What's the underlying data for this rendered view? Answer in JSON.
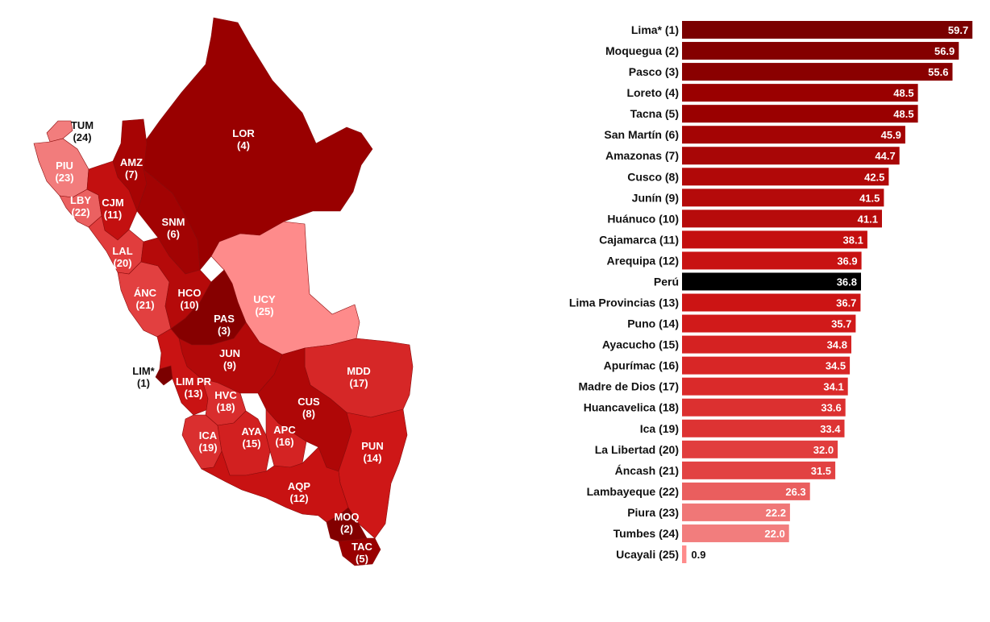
{
  "map": {
    "regions": [
      {
        "code": "LOR",
        "rank": "(4)",
        "value": 48.5,
        "label_color": "#ffffff"
      },
      {
        "code": "AMZ",
        "rank": "(7)",
        "value": 44.7,
        "label_color": "#ffffff"
      },
      {
        "code": "TUM",
        "rank": "(24)",
        "value": 22.0,
        "label_color": "#111111"
      },
      {
        "code": "PIU",
        "rank": "(23)",
        "value": 22.2,
        "label_color": "#ffffff"
      },
      {
        "code": "LBY",
        "rank": "(22)",
        "value": 26.3,
        "label_color": "#ffffff"
      },
      {
        "code": "CJM",
        "rank": "(11)",
        "value": 38.1,
        "label_color": "#ffffff"
      },
      {
        "code": "SNM",
        "rank": "(6)",
        "value": 45.9,
        "label_color": "#ffffff"
      },
      {
        "code": "LAL",
        "rank": "(20)",
        "value": 32.0,
        "label_color": "#ffffff"
      },
      {
        "code": "ÁNC",
        "rank": "(21)",
        "value": 31.5,
        "label_color": "#ffffff"
      },
      {
        "code": "HCO",
        "rank": "(10)",
        "value": 41.1,
        "label_color": "#ffffff"
      },
      {
        "code": "UCY",
        "rank": "(25)",
        "value": 0.9,
        "label_color": "#ffffff"
      },
      {
        "code": "PAS",
        "rank": "(3)",
        "value": 55.6,
        "label_color": "#ffffff"
      },
      {
        "code": "JUN",
        "rank": "(9)",
        "value": 41.5,
        "label_color": "#ffffff"
      },
      {
        "code": "LIM*",
        "rank": "(1)",
        "value": 59.7,
        "label_color": "#111111"
      },
      {
        "code": "LIM PR",
        "rank": "(13)",
        "value": 36.7,
        "label_color": "#ffffff"
      },
      {
        "code": "MDD",
        "rank": "(17)",
        "value": 34.1,
        "label_color": "#ffffff"
      },
      {
        "code": "HVC",
        "rank": "(18)",
        "value": 33.6,
        "label_color": "#ffffff"
      },
      {
        "code": "CUS",
        "rank": "(8)",
        "value": 42.5,
        "label_color": "#ffffff"
      },
      {
        "code": "ICA",
        "rank": "(19)",
        "value": 33.4,
        "label_color": "#ffffff"
      },
      {
        "code": "AYA",
        "rank": "(15)",
        "value": 34.8,
        "label_color": "#ffffff"
      },
      {
        "code": "APC",
        "rank": "(16)",
        "value": 34.5,
        "label_color": "#ffffff"
      },
      {
        "code": "PUN",
        "rank": "(14)",
        "value": 35.7,
        "label_color": "#ffffff"
      },
      {
        "code": "AQP",
        "rank": "(12)",
        "value": 36.9,
        "label_color": "#ffffff"
      },
      {
        "code": "MOQ",
        "rank": "(2)",
        "value": 56.9,
        "label_color": "#ffffff"
      },
      {
        "code": "TAC",
        "rank": "(5)",
        "value": 48.5,
        "label_color": "#ffffff"
      }
    ]
  },
  "chart_data": {
    "type": "bar",
    "orientation": "horizontal",
    "categories": [
      "Lima* (1)",
      "Moquegua (2)",
      "Pasco (3)",
      "Loreto (4)",
      "Tacna (5)",
      "San Martín (6)",
      "Amazonas (7)",
      "Cusco (8)",
      "Junín (9)",
      "Huánuco (10)",
      "Cajamarca (11)",
      "Arequipa (12)",
      "Perú",
      "Lima Provincias (13)",
      "Puno (14)",
      "Ayacucho (15)",
      "Apurímac (16)",
      "Madre de Dios (17)",
      "Huancavelica (18)",
      "Ica (19)",
      "La Libertad (20)",
      "Áncash (21)",
      "Lambayeque (22)",
      "Piura (23)",
      "Tumbes (24)",
      "Ucayali (25)"
    ],
    "values": [
      59.7,
      56.9,
      55.6,
      48.5,
      48.5,
      45.9,
      44.7,
      42.5,
      41.5,
      41.1,
      38.1,
      36.9,
      36.8,
      36.7,
      35.7,
      34.8,
      34.5,
      34.1,
      33.6,
      33.4,
      32.0,
      31.5,
      26.3,
      22.2,
      22.0,
      0.9
    ],
    "value_labels": [
      "59.7",
      "56.9",
      "55.6",
      "48.5",
      "48.5",
      "45.9",
      "44.7",
      "42.5",
      "41.5",
      "41.1",
      "38.1",
      "36.9",
      "36.8",
      "36.7",
      "35.7",
      "34.8",
      "34.5",
      "34.1",
      "33.6",
      "33.4",
      "32.0",
      "31.5",
      "26.3",
      "22.2",
      "22.0",
      "0.9"
    ],
    "bar_colors": [
      "#7a0000",
      "#840000",
      "#8a0000",
      "#9a0000",
      "#9a0000",
      "#a40404",
      "#a80606",
      "#b10808",
      "#b50a0a",
      "#b70b0b",
      "#c40f0f",
      "#c81212",
      "#000000",
      "#cc1414",
      "#d11a1a",
      "#d52222",
      "#d82626",
      "#da2a2a",
      "#dc3030",
      "#dd3333",
      "#e13d3d",
      "#e24242",
      "#ea5e5e",
      "#f07777",
      "#f27d7d",
      "#ff8c8c"
    ],
    "highlight_category": "Perú",
    "xlim": [
      0,
      60
    ],
    "title": "",
    "xlabel": "",
    "ylabel": "",
    "grid": false,
    "legend": "none"
  }
}
